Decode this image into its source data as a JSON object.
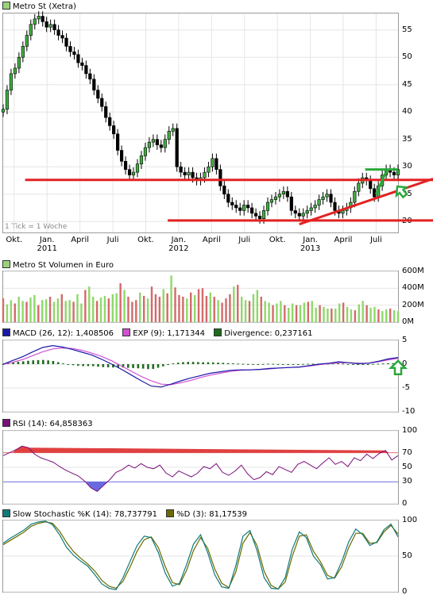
{
  "colors": {
    "price_swatch": "#9ad27a",
    "volume_swatch": "#9ad27a",
    "macd_swatch": "#1a1aa8",
    "exp_swatch": "#d24fd2",
    "div_swatch": "#1f6b1f",
    "rsi_swatch": "#7a0f7a",
    "stoch_k_swatch": "#0f7a7a",
    "stoch_d_swatch": "#6a6a00",
    "trend_red": "#e32222",
    "trend_green": "#2aa83a"
  },
  "price_panel": {
    "title": "Metro St (Xetra)",
    "note": "1 Tick = 1 Woche",
    "y_ticks": [
      "55",
      "50",
      "45",
      "40",
      "35",
      "30",
      "25",
      "20"
    ],
    "x_ticks": [
      {
        "label": "Okt.",
        "year": ""
      },
      {
        "label": "Jan.",
        "year": "2011"
      },
      {
        "label": "April",
        "year": ""
      },
      {
        "label": "Juli",
        "year": ""
      },
      {
        "label": "Okt.",
        "year": ""
      },
      {
        "label": "Jan.",
        "year": "2012"
      },
      {
        "label": "April",
        "year": ""
      },
      {
        "label": "Juli",
        "year": ""
      },
      {
        "label": "Okt.",
        "year": ""
      },
      {
        "label": "Jan.",
        "year": "2013"
      },
      {
        "label": "April",
        "year": ""
      },
      {
        "label": "Juli",
        "year": ""
      }
    ]
  },
  "volume_panel": {
    "title": "Metro St Volumen in Euro",
    "y_ticks": [
      "600M",
      "400M",
      "200M",
      "0M"
    ]
  },
  "macd_panel": {
    "legend": [
      {
        "label": "MACD (26, 12): 1,408506",
        "swatch": "macd_swatch"
      },
      {
        "label": "EXP (9): 1,171344",
        "swatch": "exp_swatch"
      },
      {
        "label": "Divergence: 0,237161",
        "swatch": "div_swatch"
      }
    ],
    "y_ticks": [
      "5",
      "0",
      "-5",
      "-10"
    ]
  },
  "rsi_panel": {
    "legend": [
      {
        "label": "RSI (14): 64,858363",
        "swatch": "rsi_swatch"
      }
    ],
    "y_ticks": [
      "100",
      "70",
      "50",
      "30",
      "0"
    ]
  },
  "stoch_panel": {
    "legend": [
      {
        "label": "Slow Stochastic %K (14): 78,737791",
        "swatch": "stoch_k_swatch"
      },
      {
        "label": "%D (3): 81,17539",
        "swatch": "stoch_d_swatch"
      }
    ],
    "y_ticks": [
      "100",
      "50",
      "0"
    ]
  },
  "chart_data": [
    {
      "type": "candlestick",
      "title": "Metro St (Xetra)",
      "frequency": "weekly",
      "x_range": [
        "2010-09",
        "2013-09"
      ],
      "ylim": [
        18,
        58
      ],
      "close_series": [
        40.5,
        44,
        47,
        48,
        50,
        52,
        54,
        56,
        57,
        57.5,
        56.5,
        55.5,
        56,
        55,
        54,
        53.5,
        52,
        51,
        50.5,
        49,
        48.5,
        47,
        46,
        44,
        42.5,
        41,
        39,
        37.5,
        36,
        33,
        31,
        29.5,
        28.5,
        29,
        30.5,
        32,
        33.5,
        34.5,
        35,
        34,
        33.5,
        35,
        36.5,
        37,
        30,
        29,
        28.5,
        29,
        28,
        27.5,
        28,
        29,
        30,
        31.5,
        29.5,
        26.5,
        25,
        23.5,
        23,
        22.5,
        22,
        23,
        22.5,
        21.5,
        21,
        20.5,
        22,
        23.5,
        24,
        24.5,
        25,
        25.5,
        24.5,
        22,
        21.5,
        21,
        21.5,
        22,
        22.5,
        23,
        24,
        24.5,
        25,
        23.5,
        22,
        21.5,
        22,
        22.5,
        23.5,
        25.5,
        27,
        28,
        27.5,
        26,
        24.5,
        26.5,
        28.5,
        29.5,
        29,
        28.5,
        29.5
      ]
    },
    {
      "type": "trendlines",
      "lines": [
        {
          "color": "red",
          "from": [
            "2010-11",
            27.6
          ],
          "to": [
            "2013-09",
            27.6
          ]
        },
        {
          "color": "red",
          "from": [
            "2011-12",
            20.2
          ],
          "to": [
            "2013-09",
            20.2
          ]
        },
        {
          "color": "red",
          "from": [
            "2012-12",
            19.5
          ],
          "to": [
            "2013-09",
            27.8
          ]
        },
        {
          "color": "green",
          "from": [
            "2013-06",
            29.5
          ],
          "to": [
            "2013-09",
            29.5
          ]
        },
        {
          "color": "green",
          "from": [
            "2013-07",
            25.0
          ],
          "to": [
            "2013-08",
            29.5
          ]
        }
      ],
      "arrows": [
        {
          "color": "green",
          "direction": "up-left",
          "at": [
            "2013-08",
            25.5
          ]
        }
      ]
    },
    {
      "type": "bar",
      "title": "Metro St Volumen in Euro",
      "ylim": [
        0,
        600
      ],
      "values": [
        280,
        210,
        260,
        220,
        300,
        250,
        240,
        290,
        320,
        200,
        260,
        270,
        300,
        240,
        280,
        330,
        250,
        260,
        240,
        330,
        220,
        380,
        420,
        300,
        250,
        290,
        310,
        280,
        330,
        340,
        460,
        380,
        300,
        240,
        260,
        350,
        310,
        280,
        420,
        330,
        300,
        390,
        340,
        550,
        410,
        320,
        300,
        280,
        350,
        320,
        390,
        400,
        310,
        350,
        300,
        260,
        230,
        280,
        330,
        420,
        440,
        300,
        260,
        250,
        330,
        380,
        300,
        250,
        230,
        200,
        220,
        250,
        200,
        170,
        220,
        200,
        200,
        230,
        240,
        250,
        170,
        200,
        180,
        160,
        160,
        160,
        220,
        230,
        180,
        150,
        140,
        210,
        250,
        200,
        170,
        180,
        150,
        130,
        150,
        160,
        140,
        130
      ]
    },
    {
      "type": "line",
      "title": "MACD",
      "ylim": [
        -10,
        5
      ],
      "series": [
        {
          "name": "MACD (26, 12)",
          "values": [
            0,
            0.8,
            1.6,
            2.6,
            3.5,
            3.9,
            3.6,
            3.1,
            2.5,
            1.9,
            1.0,
            0,
            -1.1,
            -2.3,
            -3.5,
            -4.6,
            -4.8,
            -4.2,
            -3.5,
            -2.9,
            -2.4,
            -1.9,
            -1.6,
            -1.3,
            -1.2,
            -1.2,
            -1.1,
            -0.9,
            -0.8,
            -0.7,
            -0.6,
            -0.3,
            0,
            0.2,
            0.5,
            0.3,
            0.1,
            0.2,
            0.6,
            1.1,
            1.4
          ]
        },
        {
          "name": "EXP (9)",
          "values": [
            0,
            0.4,
            1.0,
            1.8,
            2.6,
            3.2,
            3.4,
            3.3,
            2.9,
            2.3,
            1.6,
            0.7,
            -0.4,
            -1.5,
            -2.6,
            -3.5,
            -4.2,
            -4.3,
            -3.9,
            -3.4,
            -2.8,
            -2.3,
            -1.9,
            -1.5,
            -1.3,
            -1.2,
            -1.1,
            -1.0,
            -0.8,
            -0.7,
            -0.6,
            -0.4,
            -0.1,
            0.1,
            0.3,
            0.3,
            0.2,
            0.2,
            0.5,
            0.9,
            1.2
          ]
        }
      ]
    },
    {
      "type": "line",
      "title": "RSI (14)",
      "ylim": [
        0,
        100
      ],
      "reference_lines": [
        70,
        30
      ],
      "values": [
        66,
        70,
        74,
        79,
        77,
        68,
        63,
        60,
        57,
        51,
        46,
        42,
        38,
        31,
        22,
        17,
        25,
        33,
        43,
        47,
        53,
        49,
        55,
        50,
        48,
        53,
        42,
        37,
        45,
        41,
        37,
        42,
        51,
        48,
        55,
        43,
        39,
        45,
        53,
        41,
        33,
        36,
        44,
        40,
        51,
        47,
        43,
        54,
        58,
        53,
        48,
        56,
        63,
        54,
        58,
        51,
        63,
        59,
        68,
        62,
        69,
        73,
        60,
        66
      ]
    },
    {
      "type": "line",
      "title": "Slow Stochastic",
      "ylim": [
        0,
        100
      ],
      "series": [
        {
          "name": "Slow Stochastic %K (14)",
          "values": [
            68,
            75,
            81,
            87,
            95,
            98,
            99,
            94,
            80,
            62,
            51,
            43,
            36,
            24,
            11,
            5,
            3,
            20,
            43,
            65,
            78,
            76,
            55,
            26,
            8,
            12,
            38,
            67,
            80,
            55,
            24,
            7,
            5,
            37,
            78,
            86,
            58,
            20,
            5,
            4,
            20,
            60,
            84,
            76,
            50,
            38,
            18,
            20,
            42,
            70,
            88,
            80,
            65,
            70,
            87,
            95,
            77
          ]
        },
        {
          "name": "%D (3)",
          "values": [
            66,
            72,
            78,
            84,
            92,
            96,
            98,
            96,
            85,
            69,
            56,
            47,
            39,
            29,
            16,
            8,
            5,
            15,
            35,
            57,
            73,
            77,
            62,
            35,
            13,
            10,
            30,
            58,
            76,
            61,
            32,
            12,
            6,
            28,
            68,
            83,
            65,
            29,
            9,
            4,
            14,
            50,
            78,
            80,
            57,
            42,
            23,
            19,
            35,
            62,
            82,
            82,
            68,
            69,
            84,
            93,
            81
          ]
        }
      ]
    }
  ]
}
